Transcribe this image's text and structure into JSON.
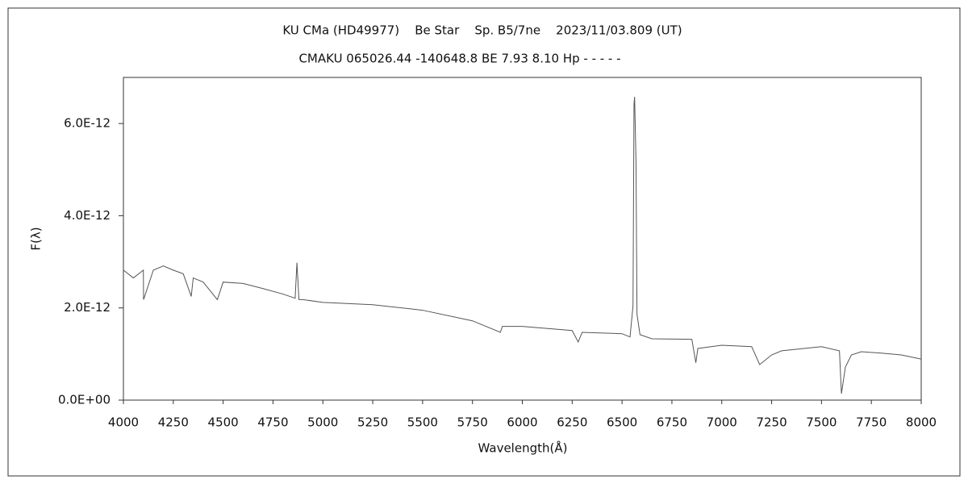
{
  "chart_data": {
    "type": "line",
    "title": "KU CMa (HD49977)    Be Star    Sp. B5/7ne    2023/11/03.809 (UT)",
    "subtitle": "CMAKU 065026.44 -140648.8 BE 7.93 8.10 Hp - - - - -",
    "x_label": "Wavelength(Å)",
    "y_label": "F(λ)",
    "xlim": [
      4000,
      8000
    ],
    "xticks": [
      4000,
      4250,
      4500,
      4750,
      5000,
      5250,
      5500,
      5750,
      6000,
      6250,
      6500,
      6750,
      7000,
      7250,
      7500,
      7750,
      8000
    ],
    "ylim": [
      0,
      7e-12
    ],
    "yticks": [
      {
        "value": 0,
        "label": "0.0E+00"
      },
      {
        "value": 2e-12,
        "label": "2.0E-12"
      },
      {
        "value": 4e-12,
        "label": "4.0E-12"
      },
      {
        "value": 6e-12,
        "label": "6.0E-12"
      }
    ],
    "grid": false,
    "series": [
      {
        "color": "#555555",
        "x": [
          4000,
          4050,
          4100,
          4101,
          4150,
          4200,
          4250,
          4300,
          4340,
          4350,
          4400,
          4471,
          4500,
          4600,
          4700,
          4800,
          4861,
          4870,
          4880,
          4900,
          5000,
          5250,
          5500,
          5750,
          5890,
          5900,
          6000,
          6250,
          6280,
          6300,
          6500,
          6540,
          6555,
          6560,
          6563,
          6570,
          6575,
          6590,
          6650,
          6850,
          6870,
          6880,
          7000,
          7150,
          7190,
          7250,
          7300,
          7500,
          7590,
          7600,
          7620,
          7650,
          7700,
          7800,
          7900,
          8000
        ],
        "values": [
          2.82e-12,
          2.65e-12,
          2.82e-12,
          2.18e-12,
          2.82e-12,
          2.91e-12,
          2.82e-12,
          2.74e-12,
          2.25e-12,
          2.65e-12,
          2.56e-12,
          2.18e-12,
          2.56e-12,
          2.53e-12,
          2.42e-12,
          2.3e-12,
          2.21e-12,
          2.98e-12,
          2.18e-12,
          2.18e-12,
          2.12e-12,
          2.07e-12,
          1.95e-12,
          1.72e-12,
          1.47e-12,
          1.6e-12,
          1.6e-12,
          1.51e-12,
          1.26e-12,
          1.47e-12,
          1.44e-12,
          1.37e-12,
          2.04e-12,
          6.42e-12,
          6.58e-12,
          5.19e-12,
          1.86e-12,
          1.42e-12,
          1.33e-12,
          1.32e-12,
          8.1e-13,
          1.12e-12,
          1.19e-12,
          1.16e-12,
          7.7e-13,
          9.8e-13,
          1.07e-12,
          1.16e-12,
          1.07e-12,
          1.4e-13,
          7.2e-13,
          9.8e-13,
          1.05e-12,
          1.02e-12,
          9.8e-13,
          8.9e-13
        ]
      }
    ]
  }
}
